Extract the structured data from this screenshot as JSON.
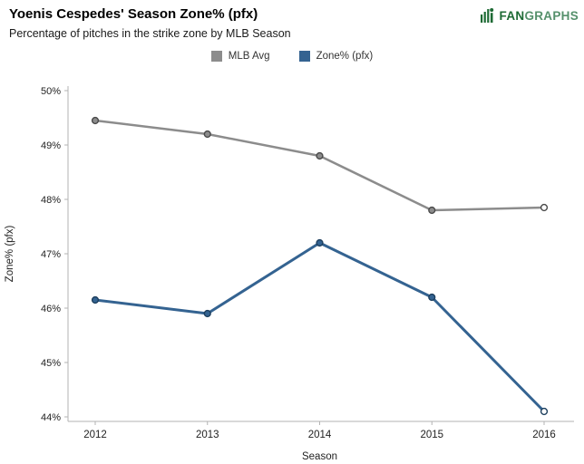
{
  "header": {
    "title": "Yoenis Cespedes' Season Zone% (pfx)",
    "subtitle": "Percentage of pitches in the strike zone by MLB Season"
  },
  "logo": {
    "fan": "FAN",
    "graphs": "GRAPHS",
    "green": "#1d6a34"
  },
  "chart_data": {
    "type": "line",
    "categories": [
      "2012",
      "2013",
      "2014",
      "2015",
      "2016"
    ],
    "series": [
      {
        "name": "MLB Avg",
        "color": "#8c8c8c",
        "marker_stroke": "#4a4a4a",
        "line_width": 2.5,
        "values": [
          49.45,
          49.2,
          48.8,
          47.8,
          47.85
        ]
      },
      {
        "name": "Zone% (pfx)",
        "color": "#346391",
        "marker_stroke": "#1d3f5e",
        "line_width": 3,
        "values": [
          46.15,
          45.9,
          47.2,
          46.2,
          44.1
        ]
      }
    ],
    "title": "Yoenis Cespedes' Season Zone% (pfx)",
    "xlabel": "Season",
    "ylabel": "Zone% (pfx)",
    "ylim": [
      44,
      50
    ],
    "ytick_step": 1,
    "yticks": [
      "44%",
      "45%",
      "46%",
      "47%",
      "48%",
      "49%",
      "50%"
    ],
    "grid": false,
    "legend_position": "top"
  }
}
